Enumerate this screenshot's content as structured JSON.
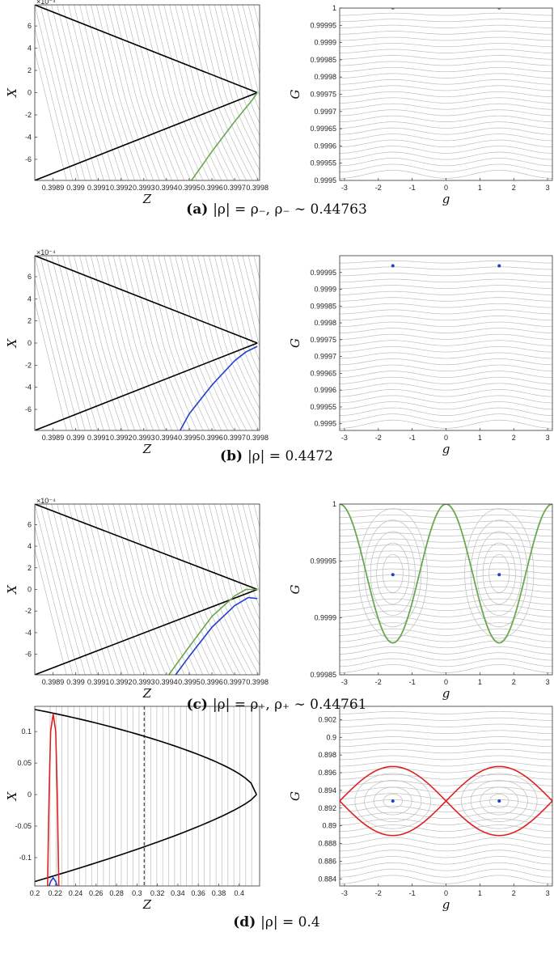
{
  "chart_data": [
    {
      "id": "a-left",
      "type": "line",
      "xlabel": "Z",
      "ylabel": "X",
      "scale_note": "×10⁻⁴",
      "xlim": [
        0.39882,
        0.39981
      ],
      "ylim": [
        -7.9,
        7.9
      ],
      "xticks": [
        "0.3989",
        "0.399",
        "0.3991",
        "0.3992",
        "0.3993",
        "0.3994",
        "0.3995",
        "0.3996",
        "0.3997",
        "0.3998"
      ],
      "xtick_values": [
        0.3989,
        0.399,
        0.3991,
        0.3992,
        0.3993,
        0.3994,
        0.3995,
        0.3996,
        0.3997,
        0.3998
      ],
      "yticks": [
        "6",
        "4",
        "2",
        "0",
        "-2",
        "-4",
        "-6"
      ],
      "ytick_values": [
        6,
        4,
        2,
        0,
        -2,
        -4,
        -6
      ],
      "wedge": {
        "apex": [
          0.3998,
          0
        ],
        "upper_start": [
          0.39882,
          7.9
        ],
        "lower_start": [
          0.39882,
          -7.9
        ]
      },
      "background_color": "#bdbdbd",
      "curves": [
        {
          "color": "#6aa84f",
          "points": [
            [
              0.39951,
              -7.9
            ],
            [
              0.3996,
              -5.3
            ],
            [
              0.3997,
              -2.6
            ],
            [
              0.39978,
              -0.6
            ],
            [
              0.3998,
              0
            ]
          ]
        }
      ]
    },
    {
      "id": "a-right",
      "type": "line",
      "xlabel": "g",
      "ylabel": "G",
      "xlim": [
        -3.1416,
        3.1416
      ],
      "ylim": [
        0.9995,
        1.0
      ],
      "xticks": [
        "-3",
        "-2",
        "-1",
        "0",
        "1",
        "2",
        "3"
      ],
      "xtick_values": [
        -3,
        -2,
        -1,
        0,
        1,
        2,
        3
      ],
      "yticks": [
        "1",
        "0.99995",
        "0.9999",
        "0.99985",
        "0.9998",
        "0.99975",
        "0.9997",
        "0.99965",
        "0.9996",
        "0.99955",
        "0.9995"
      ],
      "ytick_values": [
        1,
        0.99995,
        0.9999,
        0.99985,
        0.9998,
        0.99975,
        0.9997,
        0.99965,
        0.9996,
        0.99955,
        0.9995
      ],
      "background_color": "#bdbdbd",
      "points": [
        {
          "x": -1.5708,
          "y": 1.0,
          "color": "#6aa84f"
        },
        {
          "x": 1.5708,
          "y": 1.0,
          "color": "#6aa84f"
        }
      ]
    },
    {
      "id": "b-left",
      "type": "line",
      "xlabel": "Z",
      "ylabel": "X",
      "scale_note": "×10⁻⁴",
      "xlim": [
        0.39882,
        0.39981
      ],
      "ylim": [
        -7.9,
        7.9
      ],
      "xticks": [
        "0.3989",
        "0.399",
        "0.3991",
        "0.3992",
        "0.3993",
        "0.3994",
        "0.3995",
        "0.3996",
        "0.3997",
        "0.3998"
      ],
      "xtick_values": [
        0.3989,
        0.399,
        0.3991,
        0.3992,
        0.3993,
        0.3994,
        0.3995,
        0.3996,
        0.3997,
        0.3998
      ],
      "yticks": [
        "6",
        "4",
        "2",
        "0",
        "-2",
        "-4",
        "-6"
      ],
      "ytick_values": [
        6,
        4,
        2,
        0,
        -2,
        -4,
        -6
      ],
      "wedge": {
        "apex": [
          0.3998,
          0
        ],
        "upper_start": [
          0.39882,
          7.9
        ],
        "lower_start": [
          0.39882,
          -7.9
        ]
      },
      "background_color": "#bdbdbd",
      "curves": [
        {
          "color": "#1f3fd1",
          "points": [
            [
              0.39946,
              -7.9
            ],
            [
              0.3995,
              -6.4
            ],
            [
              0.3996,
              -3.8
            ],
            [
              0.3997,
              -1.6
            ],
            [
              0.39975,
              -0.8
            ],
            [
              0.3998,
              -0.3
            ]
          ]
        }
      ]
    },
    {
      "id": "b-right",
      "type": "line",
      "xlabel": "g",
      "ylabel": "G",
      "xlim": [
        -3.1416,
        3.1416
      ],
      "ylim": [
        0.99948,
        1.0
      ],
      "xticks": [
        "-3",
        "-2",
        "-1",
        "0",
        "1",
        "2",
        "3"
      ],
      "xtick_values": [
        -3,
        -2,
        -1,
        0,
        1,
        2,
        3
      ],
      "yticks": [
        "0.99995",
        "0.9999",
        "0.99985",
        "0.9998",
        "0.99975",
        "0.9997",
        "0.99965",
        "0.9996",
        "0.99955",
        "0.9995"
      ],
      "ytick_values": [
        0.99995,
        0.9999,
        0.99985,
        0.9998,
        0.99975,
        0.9997,
        0.99965,
        0.9996,
        0.99955,
        0.9995
      ],
      "background_color": "#bdbdbd",
      "points": [
        {
          "x": -1.5708,
          "y": 0.99997,
          "color": "#1f3fd1"
        },
        {
          "x": 1.5708,
          "y": 0.99997,
          "color": "#1f3fd1"
        }
      ]
    },
    {
      "id": "c-left",
      "type": "line",
      "xlabel": "Z",
      "ylabel": "X",
      "scale_note": "×10⁻⁴",
      "xlim": [
        0.39882,
        0.39981
      ],
      "ylim": [
        -7.9,
        7.9
      ],
      "xticks": [
        "0.3989",
        "0.399",
        "0.3991",
        "0.3992",
        "0.3993",
        "0.3994",
        "0.3995",
        "0.3996",
        "0.3997",
        "0.3998"
      ],
      "xtick_values": [
        0.3989,
        0.399,
        0.3991,
        0.3992,
        0.3993,
        0.3994,
        0.3995,
        0.3996,
        0.3997,
        0.3998
      ],
      "yticks": [
        "6",
        "4",
        "2",
        "0",
        "-2",
        "-4",
        "-6"
      ],
      "ytick_values": [
        6,
        4,
        2,
        0,
        -2,
        -4,
        -6
      ],
      "wedge": {
        "apex": [
          0.3998,
          0
        ],
        "upper_start": [
          0.39882,
          7.9
        ],
        "lower_start": [
          0.39882,
          -7.9
        ]
      },
      "background_color": "#bdbdbd",
      "curves": [
        {
          "color": "#6aa84f",
          "points": [
            [
              0.39941,
              -7.9
            ],
            [
              0.3995,
              -5.3
            ],
            [
              0.3996,
              -2.5
            ],
            [
              0.3997,
              -0.6
            ],
            [
              0.39975,
              0
            ],
            [
              0.3998,
              0
            ]
          ]
        },
        {
          "color": "#1f3fd1",
          "points": [
            [
              0.39944,
              -7.9
            ],
            [
              0.3995,
              -6.2
            ],
            [
              0.3996,
              -3.5
            ],
            [
              0.3997,
              -1.5
            ],
            [
              0.39976,
              -0.75
            ],
            [
              0.3998,
              -0.85
            ]
          ]
        }
      ]
    },
    {
      "id": "c-right",
      "type": "line",
      "xlabel": "g",
      "ylabel": "G",
      "xlim": [
        -3.1416,
        3.1416
      ],
      "ylim": [
        0.99985,
        1.0
      ],
      "xticks": [
        "-3",
        "-2",
        "-1",
        "0",
        "1",
        "2",
        "3"
      ],
      "xtick_values": [
        -3,
        -2,
        -1,
        0,
        1,
        2,
        3
      ],
      "yticks": [
        "1",
        "0.99995",
        "0.9999",
        "0.99985"
      ],
      "ytick_values": [
        1,
        0.99995,
        0.9999,
        0.99985
      ],
      "background_color": "#bdbdbd",
      "separatrix": {
        "color": "#6aa84f",
        "top": 1.0,
        "bottom": 0.999878
      },
      "points": [
        {
          "x": -1.5708,
          "y": 0.999938,
          "color": "#1f3fd1"
        },
        {
          "x": 1.5708,
          "y": 0.999938,
          "color": "#1f3fd1"
        }
      ]
    },
    {
      "id": "d-left",
      "type": "line",
      "xlabel": "Z",
      "ylabel": "X",
      "xlim": [
        0.2,
        0.42
      ],
      "ylim": [
        -0.145,
        0.14
      ],
      "xticks": [
        "0.2",
        "0.22",
        "0.24",
        "0.26",
        "0.28",
        "0.3",
        "0.32",
        "0.34",
        "0.36",
        "0.38",
        "0.4"
      ],
      "xtick_values": [
        0.2,
        0.22,
        0.24,
        0.26,
        0.28,
        0.3,
        0.32,
        0.34,
        0.36,
        0.38,
        0.4
      ],
      "yticks": [
        "0.1",
        "0.05",
        "0",
        "-0.05",
        "-0.1"
      ],
      "ytick_values": [
        0.1,
        0.05,
        0,
        -0.05,
        -0.1
      ],
      "wedge": {
        "apex": [
          0.417,
          0
        ],
        "upper_start": [
          0.2,
          0.135
        ],
        "lower_start": [
          0.2,
          -0.138
        ]
      },
      "dashed_line_x": 0.307,
      "background_color": "#bdbdbd",
      "curves": [
        {
          "color": "#e02020",
          "points": [
            [
              0.2125,
              -0.145
            ],
            [
              0.214,
              0.0
            ],
            [
              0.2155,
              0.1
            ],
            [
              0.218,
              0.128
            ],
            [
              0.2205,
              0.1
            ],
            [
              0.222,
              0.0
            ],
            [
              0.2235,
              -0.145
            ]
          ]
        },
        {
          "color": "#1f3fd1",
          "points": [
            [
              0.214,
              -0.145
            ],
            [
              0.2155,
              -0.138
            ],
            [
              0.218,
              -0.132
            ],
            [
              0.2205,
              -0.138
            ],
            [
              0.222,
              -0.145
            ]
          ]
        }
      ]
    },
    {
      "id": "d-right",
      "type": "line",
      "xlabel": "g",
      "ylabel": "G",
      "xlim": [
        -3.1416,
        3.1416
      ],
      "ylim": [
        0.8832,
        0.9035
      ],
      "xticks": [
        "-3",
        "-2",
        "-1",
        "0",
        "1",
        "2",
        "3"
      ],
      "xtick_values": [
        -3,
        -2,
        -1,
        0,
        1,
        2,
        3
      ],
      "yticks": [
        "0.902",
        "0.9",
        "0.898",
        "0.896",
        "0.894",
        "0.892",
        "0.89",
        "0.888",
        "0.886",
        "0.884"
      ],
      "ytick_values": [
        0.902,
        0.9,
        0.898,
        0.896,
        0.894,
        0.892,
        0.89,
        0.888,
        0.886,
        0.884
      ],
      "background_color": "#bdbdbd",
      "separatrix": {
        "color": "#e02020",
        "center": 0.8928,
        "amplitude": 0.0039
      },
      "points": [
        {
          "x": -1.5708,
          "y": 0.8928,
          "color": "#1f3fd1"
        },
        {
          "x": 1.5708,
          "y": 0.8928,
          "color": "#1f3fd1"
        }
      ]
    }
  ],
  "captions": [
    {
      "letter": "(a)",
      "text": "|ρ| = ρ₋, ρ₋ ∼ 0.44763"
    },
    {
      "letter": "(b)",
      "text": "|ρ| = 0.4472"
    },
    {
      "letter": "(c)",
      "text": "|ρ| = ρ₊, ρ₊ ∼ 0.44761"
    },
    {
      "letter": "(d)",
      "text": "|ρ| = 0.4"
    }
  ]
}
